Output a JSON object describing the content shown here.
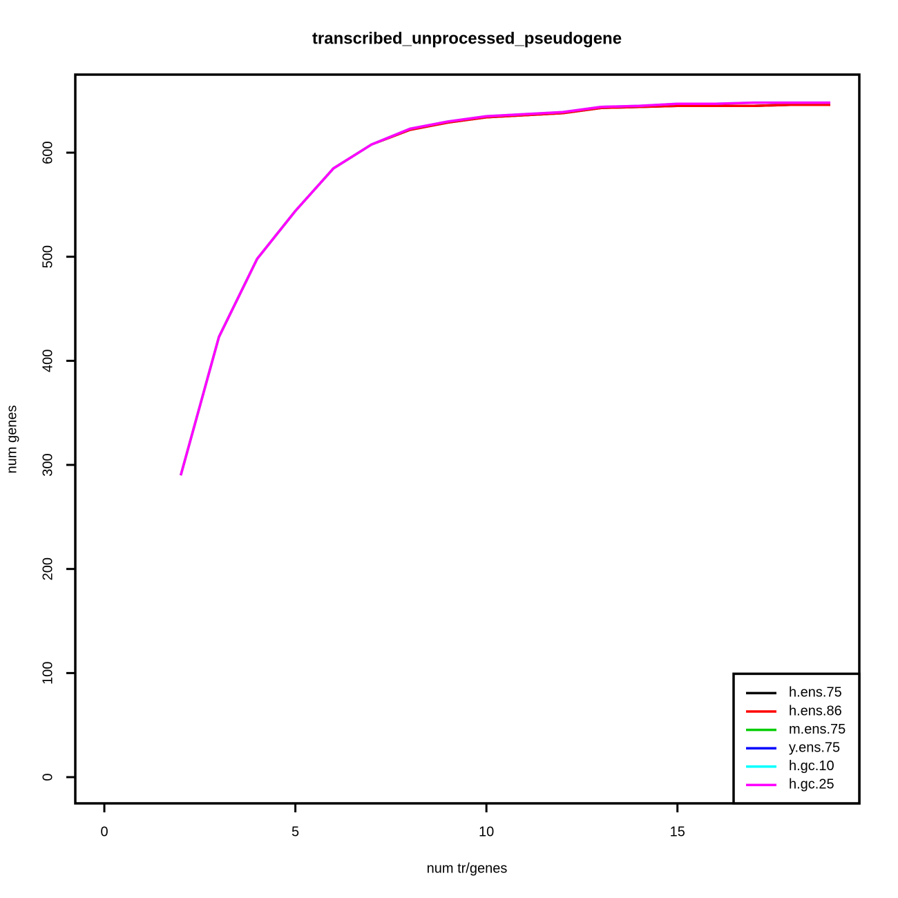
{
  "chart_data": {
    "type": "line",
    "title": "transcribed_unprocessed_pseudogene",
    "xlabel": "num tr/genes",
    "ylabel": "num genes",
    "x": [
      2,
      3,
      4,
      5,
      6,
      7,
      8,
      9,
      10,
      11,
      12,
      13,
      14,
      15,
      16,
      17,
      18,
      19
    ],
    "series": [
      {
        "name": "h.ens.75",
        "color": "#000000",
        "values": [
          290,
          423,
          498,
          544,
          585,
          608,
          622,
          629,
          634,
          636,
          638,
          643,
          644,
          645,
          645,
          645,
          646,
          646
        ]
      },
      {
        "name": "h.ens.86",
        "color": "#ff0000",
        "values": [
          290,
          423,
          498,
          544,
          585,
          608,
          622,
          629,
          634,
          636,
          638,
          643,
          644,
          645,
          645,
          645,
          646,
          646
        ]
      },
      {
        "name": "m.ens.75",
        "color": "#00cd00",
        "values": [
          null,
          null,
          null,
          null,
          null,
          null,
          null,
          null,
          null,
          null,
          null,
          null,
          null,
          null,
          null,
          null,
          null,
          null
        ]
      },
      {
        "name": "y.ens.75",
        "color": "#0000ff",
        "values": [
          null,
          null,
          null,
          null,
          null,
          null,
          null,
          null,
          null,
          null,
          null,
          null,
          null,
          null,
          null,
          null,
          null,
          null
        ]
      },
      {
        "name": "h.gc.10",
        "color": "#00ffff",
        "values": [
          290,
          423,
          498,
          544,
          585,
          608,
          623,
          630,
          635,
          637,
          639,
          644,
          645,
          647,
          647,
          648,
          648,
          648
        ]
      },
      {
        "name": "h.gc.25",
        "color": "#ff00ff",
        "values": [
          290,
          423,
          498,
          544,
          585,
          608,
          623,
          630,
          635,
          637,
          639,
          644,
          645,
          647,
          647,
          648,
          648,
          648
        ]
      }
    ],
    "xlim": [
      -0.76,
      19.76
    ],
    "xticks": [
      0,
      5,
      10,
      15
    ],
    "ylim": [
      -25.2,
      675
    ],
    "yticks": [
      0,
      100,
      200,
      300,
      400,
      500,
      600
    ],
    "legend": "bottom-right"
  }
}
